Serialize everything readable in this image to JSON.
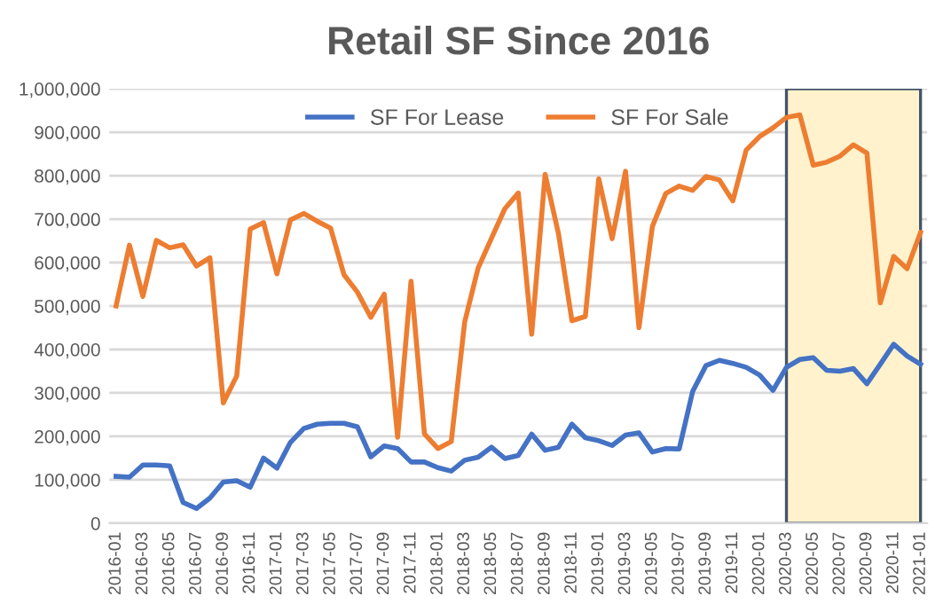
{
  "chart_data": {
    "type": "line",
    "title": "Retail SF Since 2016",
    "categories": [
      "2016-01",
      null,
      "2016-03",
      null,
      "2016-05",
      null,
      "2016-07",
      null,
      "2016-09",
      null,
      "2016-11",
      null,
      "2017-01",
      null,
      "2017-03",
      null,
      "2017-05",
      null,
      "2017-07",
      null,
      "2017-09",
      null,
      "2017-11",
      null,
      "2018-01",
      null,
      "2018-03",
      null,
      "2018-05",
      null,
      "2018-07",
      null,
      "2018-09",
      null,
      "2018-11",
      null,
      "2019-01",
      null,
      "2019-03",
      null,
      "2019-05",
      null,
      "2019-07",
      null,
      "2019-09",
      null,
      "2019-11",
      null,
      "2020-01",
      null,
      "2020-03",
      null,
      "2020-05",
      null,
      "2020-07",
      null,
      "2020-09",
      null,
      "2020-11",
      null,
      "2021-01"
    ],
    "series": [
      {
        "name": "SF For Lease",
        "color": "#4472c4",
        "values": [
          108000,
          106000,
          134000,
          134000,
          132000,
          48000,
          34000,
          58000,
          95000,
          98000,
          83000,
          150000,
          127000,
          186000,
          218000,
          228000,
          230000,
          230000,
          222000,
          153000,
          178000,
          172000,
          141000,
          141000,
          128000,
          120000,
          145000,
          152000,
          175000,
          149000,
          156000,
          205000,
          168000,
          175000,
          228000,
          197000,
          190000,
          179000,
          203000,
          208000,
          164000,
          172000,
          171000,
          303000,
          363000,
          375000,
          368000,
          359000,
          341000,
          306000,
          359000,
          377000,
          381000,
          352000,
          350000,
          356000,
          321000,
          366000,
          412000,
          385000,
          366000
        ]
      },
      {
        "name": "SF For Sale",
        "color": "#ed7d31",
        "values": [
          500000,
          640000,
          522000,
          651000,
          634000,
          641000,
          592000,
          611000,
          277000,
          339000,
          677000,
          692000,
          574000,
          698000,
          713000,
          695000,
          679000,
          572000,
          532000,
          474000,
          527000,
          198000,
          557000,
          206000,
          172000,
          188000,
          463000,
          587000,
          656000,
          724000,
          760000,
          435000,
          803000,
          666000,
          466000,
          476000,
          793000,
          655000,
          810000,
          450000,
          683000,
          759000,
          776000,
          766000,
          798000,
          790000,
          742000,
          859000,
          890000,
          910000,
          934000,
          940000,
          824000,
          831000,
          845000,
          871000,
          852000,
          507000,
          614000,
          586000,
          669000
        ]
      }
    ],
    "ylim": [
      0,
      1000000
    ],
    "yticks": [
      0,
      {
        "value": 100000,
        "label": "100,000"
      },
      {
        "value": 200000,
        "label": "200,000"
      },
      {
        "value": 300000,
        "label": "300,000"
      },
      {
        "value": 400000,
        "label": "400,000"
      },
      {
        "value": 500000,
        "label": "500,000"
      },
      {
        "value": 600000,
        "label": "600,000"
      },
      {
        "value": 700000,
        "label": "700,000"
      },
      {
        "value": 800000,
        "label": "800,000"
      },
      {
        "value": 900000,
        "label": "900,000"
      },
      {
        "value": 1000000,
        "label": "1,000,000"
      }
    ],
    "grid": "y",
    "legend": "top",
    "marker": "none",
    "line_style": "solid",
    "bands": [
      {
        "axis": "x",
        "from": "2020-03",
        "to": "2021-01",
        "color": "#fff2cc"
      }
    ]
  }
}
